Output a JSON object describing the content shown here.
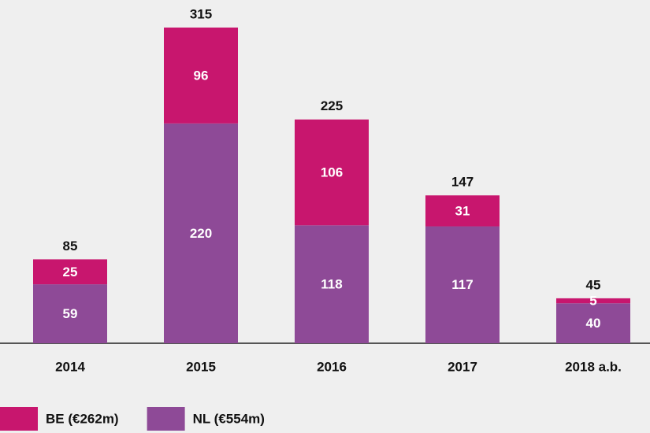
{
  "chart_data": {
    "type": "stacked_bar",
    "categories": [
      "2014",
      "2015",
      "2016",
      "2017",
      "2018 a.b."
    ],
    "series": [
      {
        "name": "NL (€554m)",
        "color": "#8e4a97",
        "values": [
          59,
          220,
          118,
          117,
          40
        ]
      },
      {
        "name": "BE (€262m)",
        "color": "#c8166e",
        "values": [
          25,
          96,
          106,
          31,
          5
        ]
      }
    ],
    "totals": [
      85,
      315,
      225,
      147,
      45
    ]
  }
}
